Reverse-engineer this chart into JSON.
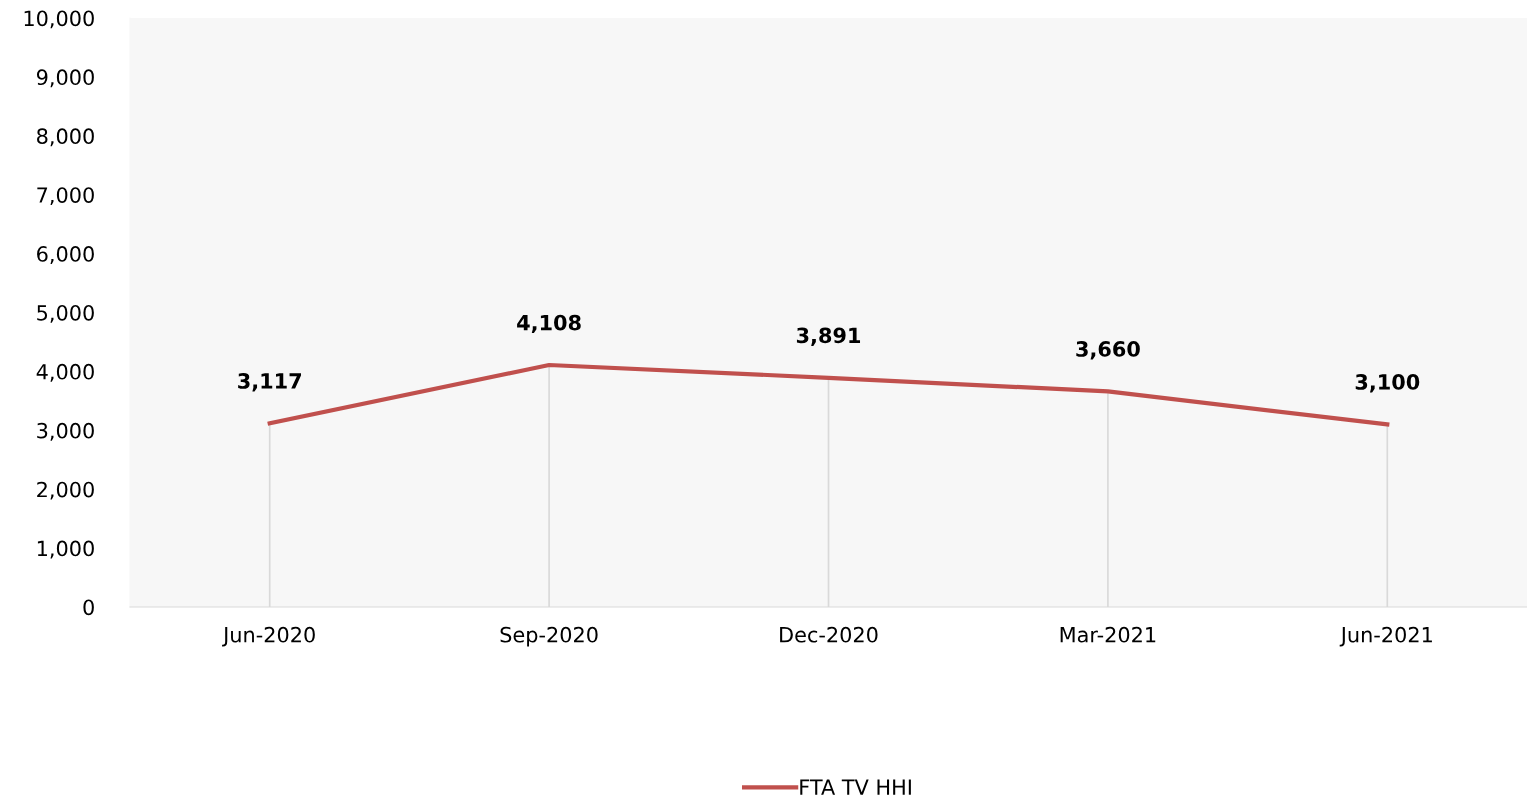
{
  "chart_data": {
    "type": "line",
    "categories": [
      "Jun-2020",
      "Sep-2020",
      "Dec-2020",
      "Mar-2021",
      "Jun-2021"
    ],
    "series": [
      {
        "name": "FTA TV HHI",
        "color": "#c0504d",
        "values": [
          3117,
          4108,
          3891,
          3660,
          3100
        ],
        "value_labels": [
          "3,117",
          "4,108",
          "3,891",
          "3,660",
          "3,100"
        ],
        "errors": [
          [
            0,
            3117
          ],
          [
            0,
            4108
          ],
          [
            0,
            3891
          ],
          [
            0,
            3660
          ],
          [
            0,
            3100
          ]
        ]
      }
    ],
    "ylim": [
      0,
      10000
    ],
    "yticks": [
      0,
      {
        "value": 1000,
        "label": "1,000"
      },
      {
        "value": 2000,
        "label": "2,000"
      },
      {
        "value": 3000,
        "label": "3,000"
      },
      {
        "value": 4000,
        "label": "4,000"
      },
      {
        "value": 5000,
        "label": "5,000"
      },
      {
        "value": 6000,
        "label": "6,000"
      },
      {
        "value": 7000,
        "label": "7,000"
      },
      {
        "value": 8000,
        "label": "8,000"
      },
      {
        "value": 9000,
        "label": "9,000"
      },
      {
        "value": 10000,
        "label": "10,000"
      }
    ],
    "grid": false,
    "legend": "bottom",
    "marker": "none",
    "line_style": "solid"
  }
}
